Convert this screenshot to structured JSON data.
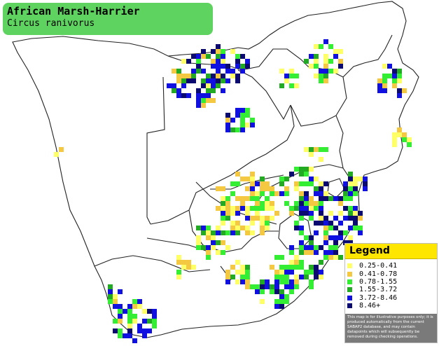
{
  "title": {
    "species": "African Marsh-Harrier",
    "latin": "Circus ranivorus"
  },
  "legend": {
    "heading": "Legend",
    "items": [
      {
        "label": "0.25-0.41",
        "color": "#ffff66"
      },
      {
        "label": "0.41-0.78",
        "color": "#f5c842"
      },
      {
        "label": "0.78-1.55",
        "color": "#33ee33"
      },
      {
        "label": "1.55-3.72",
        "color": "#22aa22"
      },
      {
        "label": "3.72-8.46",
        "color": "#1010e0"
      },
      {
        "label": "8.46+",
        "color": "#0a0a70"
      }
    ],
    "note": "This map is for illustrative purposes only; it is produced automatically from the current SABAP2 database, and may contain datapoints which will subsequently be removed during checking operations."
  },
  "colors": {
    "title_bg": "#5fd35f",
    "legend_head": "#ffe600",
    "border_stroke": "#222222"
  }
}
